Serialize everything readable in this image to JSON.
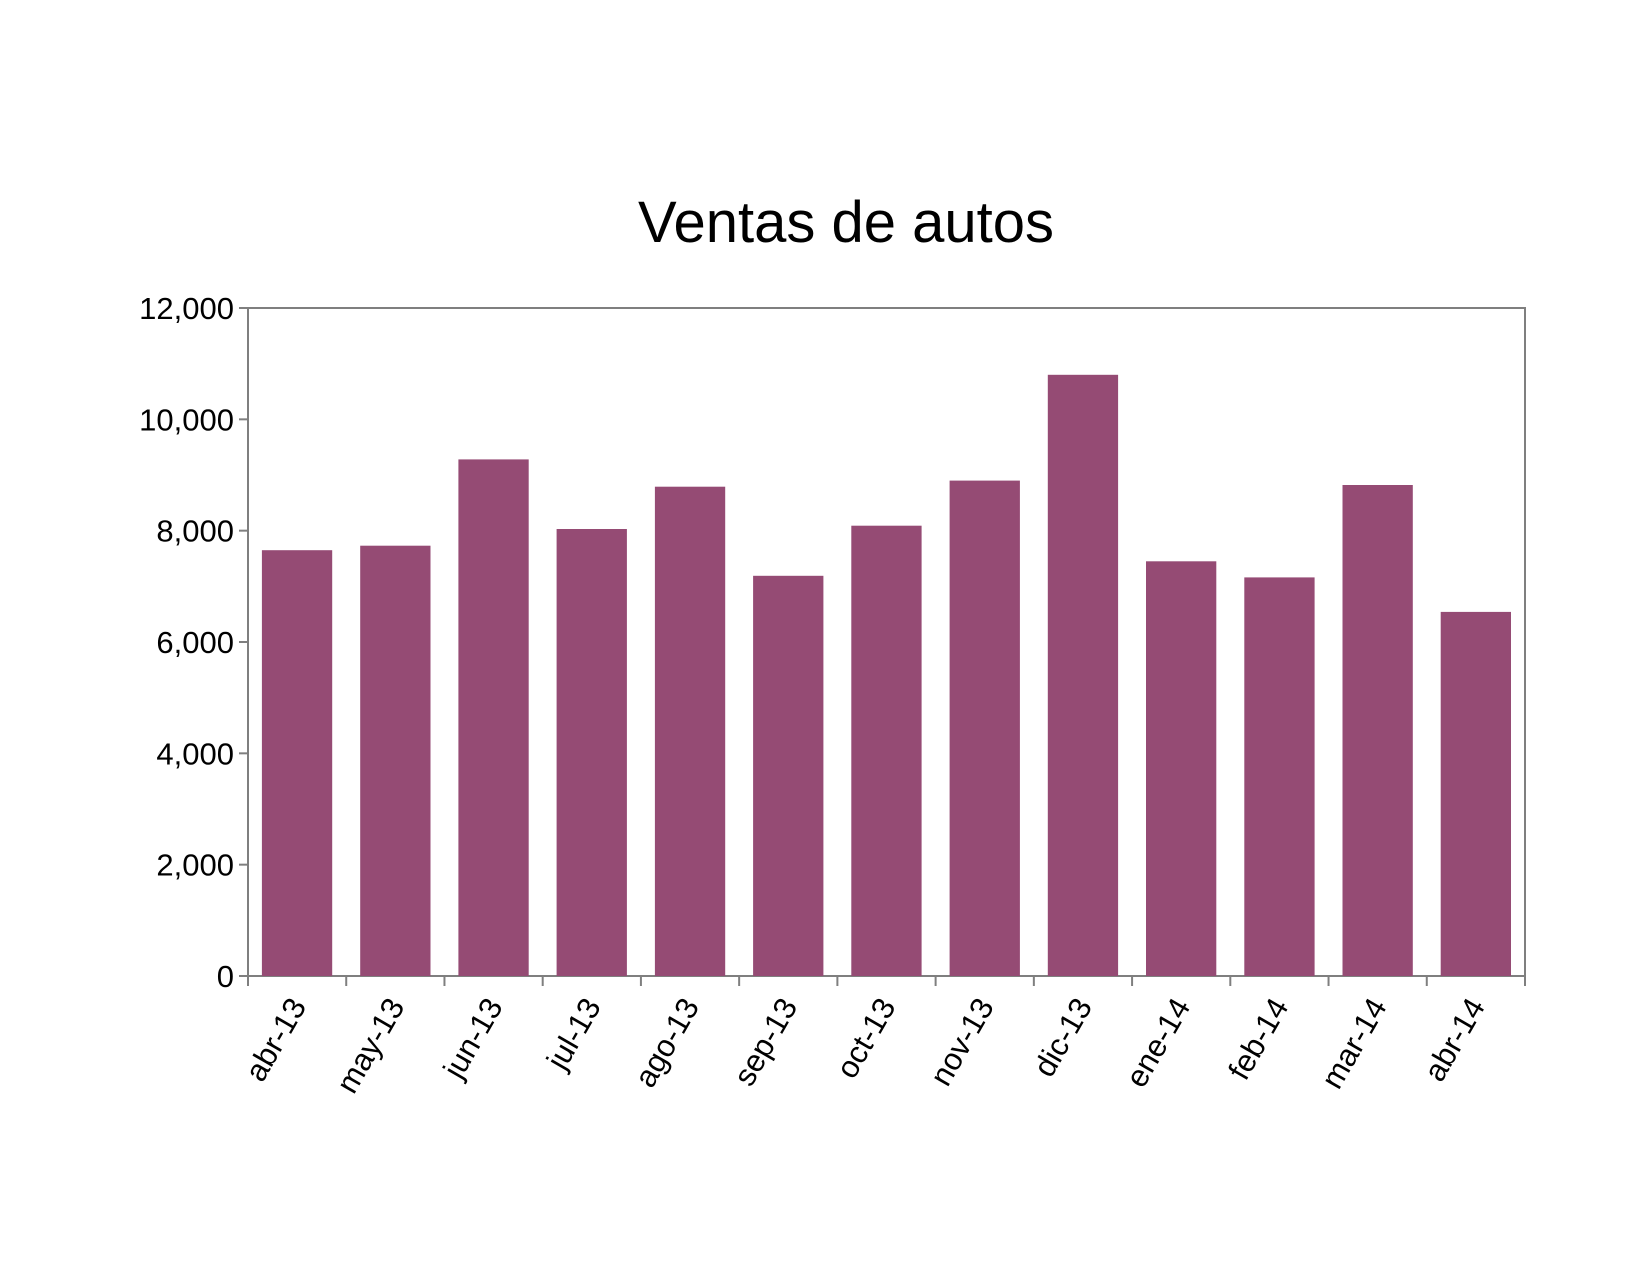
{
  "chart_data": {
    "type": "bar",
    "title": "Ventas de autos",
    "xlabel": "",
    "ylabel": "",
    "categories": [
      "abr-13",
      "may-13",
      "jun-13",
      "jul-13",
      "ago-13",
      "sep-13",
      "oct-13",
      "nov-13",
      "dic-13",
      "ene-14",
      "feb-14",
      "mar-14",
      "abr-14"
    ],
    "values": [
      7650,
      7730,
      9280,
      8030,
      8790,
      7190,
      8090,
      8900,
      10800,
      7450,
      7160,
      8820,
      6540
    ],
    "ylim": [
      0,
      12000
    ],
    "yticks": [
      0,
      2000,
      4000,
      6000,
      8000,
      10000,
      12000
    ],
    "ytick_labels": [
      "0",
      "2,000",
      "4,000",
      "6,000",
      "8,000",
      "10,000",
      "12,000"
    ],
    "grid": false,
    "legend": "none",
    "bar_color": "#954b74",
    "axis_color": "#7f7f7f"
  }
}
